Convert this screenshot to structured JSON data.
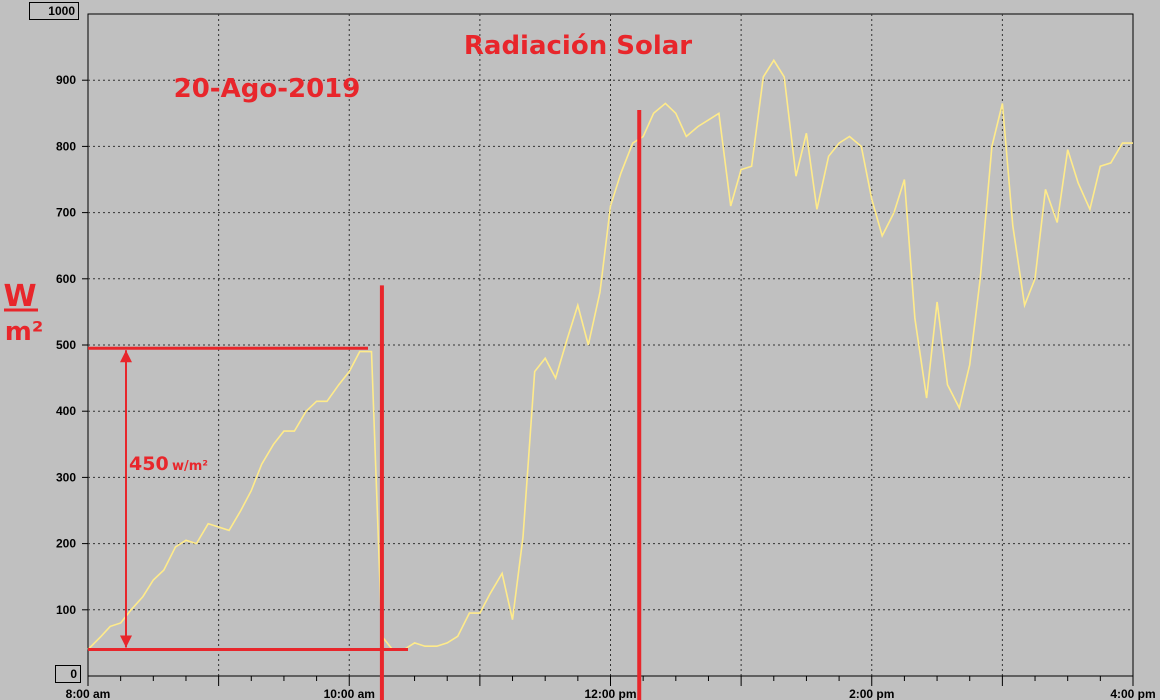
{
  "chart_data": {
    "type": "line",
    "title": "Radiación Solar",
    "subtitle": "20-Ago-2019",
    "ylabel_num": "W",
    "ylabel_den": "m²",
    "ylim": [
      0,
      1000
    ],
    "yticks": [
      0,
      100,
      200,
      300,
      400,
      500,
      600,
      700,
      800,
      900,
      1000
    ],
    "xlim": [
      8,
      16
    ],
    "xticks": [
      {
        "v": 8,
        "label": "8:00 am"
      },
      {
        "v": 10,
        "label": "10:00 am"
      },
      {
        "v": 12,
        "label": "12:00 pm"
      },
      {
        "v": 14,
        "label": "2:00 pm"
      },
      {
        "v": 16,
        "label": "4:00 pm"
      }
    ],
    "grid": true,
    "line_color": "#ffeb8a",
    "annotation_color": "#e8262b",
    "series": [
      {
        "x": [
          8.0,
          8.1,
          8.17,
          8.25,
          8.33,
          8.42,
          8.5,
          8.58,
          8.67,
          8.75,
          8.83,
          8.92,
          9.0,
          9.08,
          9.17,
          9.25,
          9.33,
          9.42,
          9.5,
          9.58,
          9.67,
          9.75,
          9.83,
          9.92,
          10.0,
          10.08,
          10.17,
          10.25,
          10.33,
          10.42,
          10.5,
          10.58,
          10.67,
          10.75,
          10.83,
          10.92,
          11.0,
          11.08,
          11.17,
          11.25,
          11.33,
          11.42,
          11.5,
          11.58,
          11.67,
          11.75,
          11.83,
          11.92,
          12.0,
          12.08,
          12.17,
          12.25,
          12.33,
          12.42,
          12.5,
          12.58,
          12.67,
          12.75,
          12.83,
          12.92,
          13.0,
          13.08,
          13.17,
          13.25,
          13.33,
          13.42,
          13.5,
          13.58,
          13.67,
          13.75,
          13.83,
          13.92,
          14.0,
          14.08,
          14.17,
          14.25,
          14.33,
          14.42,
          14.5,
          14.58,
          14.67,
          14.75,
          14.83,
          14.92,
          15.0,
          15.08,
          15.17,
          15.25,
          15.33,
          15.42,
          15.5,
          15.58,
          15.67,
          15.75,
          15.83,
          15.92,
          16.0
        ],
        "y": [
          40,
          60,
          75,
          80,
          100,
          120,
          145,
          160,
          195,
          205,
          200,
          230,
          225,
          220,
          250,
          280,
          320,
          350,
          370,
          370,
          400,
          415,
          415,
          440,
          460,
          490,
          490,
          60,
          40,
          40,
          50,
          45,
          45,
          50,
          60,
          95,
          95,
          125,
          155,
          85,
          210,
          460,
          480,
          450,
          510,
          560,
          500,
          580,
          710,
          760,
          805,
          815,
          850,
          865,
          850,
          815,
          830,
          840,
          850,
          710,
          765,
          770,
          905,
          930,
          905,
          755,
          820,
          705,
          785,
          805,
          815,
          800,
          720,
          665,
          700,
          750,
          540,
          420,
          565,
          440,
          405,
          470,
          600,
          800,
          865,
          680,
          560,
          600,
          735,
          685,
          795,
          745,
          705,
          770,
          775,
          805,
          805
        ]
      }
    ],
    "annotations": {
      "delta_value": "450",
      "delta_unit": "w/m²",
      "delta_low": 40,
      "delta_high": 495,
      "marker_low_x": 10.25,
      "marker_high_x": 12.22
    }
  }
}
